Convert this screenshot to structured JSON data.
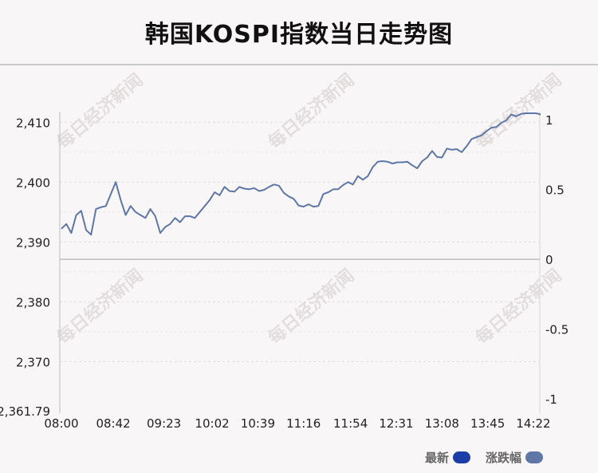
{
  "page": {
    "title": "韩国KOSPI指数当日走势图"
  },
  "legend": [
    {
      "label": "最新",
      "color": "#1a3da8"
    },
    {
      "label": "涨跌幅",
      "color": "#5e77a6"
    }
  ],
  "watermark": "每日经济新闻",
  "chart_data": {
    "type": "line",
    "title": "韩国KOSPI指数当日走势图",
    "x_ticks": [
      "08:00",
      "08:42",
      "09:23",
      "10:02",
      "10:39",
      "11:16",
      "11:54",
      "12:31",
      "13:08",
      "13:45",
      "14:22"
    ],
    "y_left": {
      "ticks": [
        "2,410",
        "2,400",
        "2,390",
        "2,380",
        "2,370"
      ],
      "tick_values": [
        2410,
        2400,
        2390,
        2380,
        2370
      ],
      "min_label": "2,361.79",
      "range": [
        2361.79,
        2411.5
      ]
    },
    "y_right": {
      "ticks": [
        "1",
        "0.5",
        "0",
        "-0.5",
        "-1"
      ],
      "tick_values": [
        1,
        0.5,
        0,
        -0.5,
        -1
      ]
    },
    "baseline": 2387.1,
    "grid": true,
    "line_color": "#5e77a6",
    "series": [
      {
        "x": [
          "08:00",
          "08:04",
          "08:08",
          "08:12",
          "08:16",
          "08:20",
          "08:24",
          "08:28",
          "08:32",
          "08:36",
          "08:40",
          "08:44",
          "08:48",
          "08:52",
          "08:56",
          "09:00",
          "09:04",
          "09:08",
          "09:12",
          "09:16",
          "09:20",
          "09:24",
          "09:28",
          "09:32",
          "09:36",
          "09:40",
          "09:44",
          "09:48",
          "09:52",
          "09:56",
          "10:00",
          "10:04",
          "10:08",
          "10:12",
          "10:16",
          "10:20",
          "10:24",
          "10:28",
          "10:32",
          "10:36",
          "10:40",
          "10:44",
          "10:48",
          "10:52",
          "10:56",
          "11:00",
          "11:04",
          "11:08",
          "11:12",
          "11:16",
          "11:20",
          "11:24",
          "11:28",
          "11:32",
          "11:36",
          "11:40",
          "11:44",
          "11:48",
          "11:52",
          "11:56",
          "12:00",
          "12:04",
          "12:08",
          "12:12",
          "12:16",
          "12:20",
          "12:24",
          "12:28",
          "12:32",
          "12:36",
          "12:40",
          "12:44",
          "12:48",
          "12:52",
          "12:56",
          "13:00",
          "13:04",
          "13:08",
          "13:12",
          "13:16",
          "13:20",
          "13:24",
          "13:28",
          "13:32",
          "13:36",
          "13:40",
          "13:44",
          "13:48",
          "13:52",
          "13:56",
          "14:00",
          "14:04",
          "14:08",
          "14:12",
          "14:16",
          "14:20",
          "14:24",
          "14:28",
          "14:31"
        ],
        "values": [
          2392.2,
          2393.0,
          2391.5,
          2394.5,
          2395.2,
          2392.0,
          2391.2,
          2395.5,
          2395.8,
          2396.0,
          2398.0,
          2400.0,
          2397.0,
          2394.5,
          2396.0,
          2395.0,
          2394.5,
          2394.0,
          2395.5,
          2394.3,
          2391.5,
          2392.5,
          2393.0,
          2394.0,
          2393.3,
          2394.3,
          2394.3,
          2394.0,
          2395.0,
          2396.0,
          2397.0,
          2398.3,
          2397.8,
          2399.2,
          2398.5,
          2398.4,
          2399.2,
          2398.9,
          2398.8,
          2399.0,
          2398.5,
          2398.7,
          2399.2,
          2399.6,
          2399.4,
          2398.2,
          2397.6,
          2397.2,
          2396.1,
          2395.9,
          2396.3,
          2395.9,
          2396.0,
          2398.0,
          2398.3,
          2398.8,
          2398.8,
          2399.5,
          2400.0,
          2399.6,
          2401.0,
          2400.4,
          2401.0,
          2402.5,
          2403.4,
          2403.5,
          2403.4,
          2403.1,
          2403.3,
          2403.3,
          2403.4,
          2402.8,
          2402.3,
          2403.5,
          2404.1,
          2405.2,
          2404.2,
          2404.1,
          2405.6,
          2405.4,
          2405.5,
          2405.0,
          2406.0,
          2407.2,
          2407.5,
          2407.8,
          2408.5,
          2409.1,
          2409.2,
          2409.9,
          2410.3,
          2411.3,
          2411.0,
          2411.4,
          2411.5,
          2411.5,
          2411.5,
          2411.3,
          2409.5
        ]
      }
    ]
  }
}
